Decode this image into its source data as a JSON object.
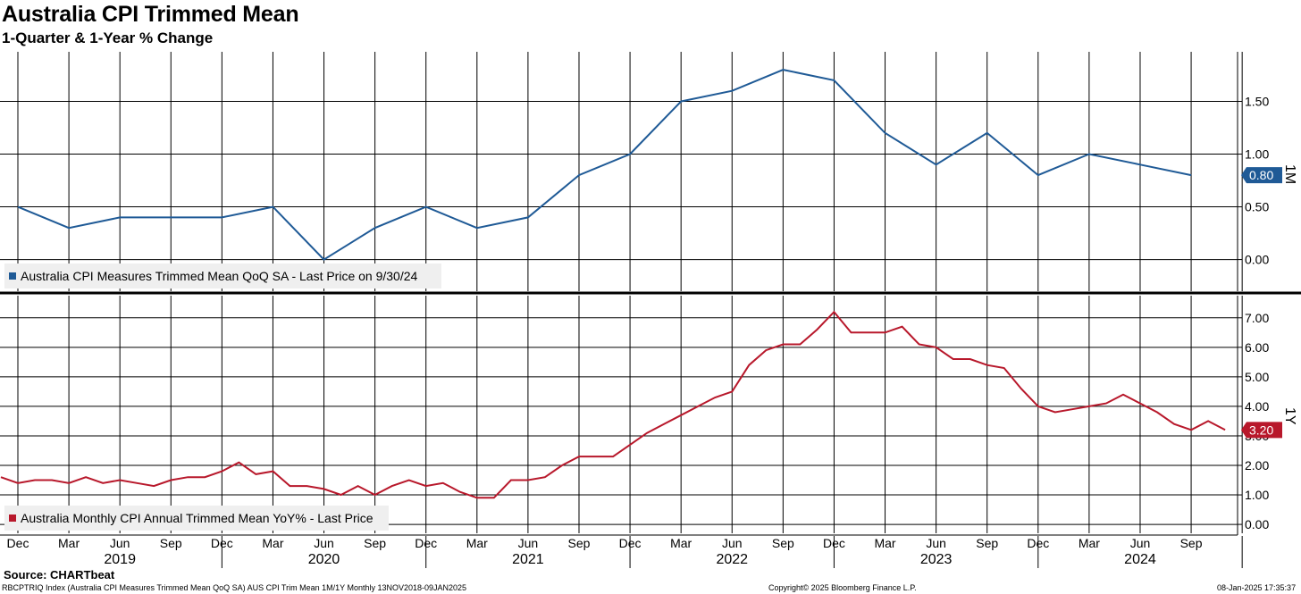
{
  "header": {
    "title": "Australia CPI Trimmed Mean",
    "subtitle": "1-Quarter & 1-Year % Change"
  },
  "colors": {
    "qoq": "#1f5a96",
    "yoy": "#b8182b"
  },
  "chart_data": [
    {
      "type": "line",
      "panel": "top",
      "title": "Australia CPI Measures Trimmed Mean QoQ SA",
      "legend": "Australia CPI Measures Trimmed Mean QoQ SA - Last Price on 9/30/24",
      "axis_tag": "1M",
      "last_value_label": "0.80",
      "ylim": [
        -0.3,
        1.97
      ],
      "yticks": [
        0.0,
        0.5,
        1.0,
        1.5
      ],
      "ytick_labels": [
        "0.00",
        "0.50",
        "1.00",
        "1.50"
      ],
      "x": [
        "2018-12",
        "2019-03",
        "2019-06",
        "2019-09",
        "2019-12",
        "2020-03",
        "2020-06",
        "2020-09",
        "2020-12",
        "2021-03",
        "2021-06",
        "2021-09",
        "2021-12",
        "2022-03",
        "2022-06",
        "2022-09",
        "2022-12",
        "2023-03",
        "2023-06",
        "2023-09",
        "2023-12",
        "2024-03",
        "2024-06",
        "2024-09"
      ],
      "values": [
        0.5,
        0.3,
        0.4,
        0.4,
        0.4,
        0.5,
        0.0,
        0.3,
        0.5,
        0.3,
        0.4,
        0.8,
        1.0,
        1.5,
        1.6,
        1.8,
        1.7,
        1.2,
        0.9,
        1.2,
        0.8,
        1.0,
        0.9,
        0.8
      ]
    },
    {
      "type": "line",
      "panel": "bottom",
      "title": "Australia Monthly CPI Annual Trimmed Mean YoY%",
      "legend": "Australia Monthly CPI Annual Trimmed Mean YoY% - Last Price",
      "axis_tag": "1Y",
      "last_value_label": "3.20",
      "ylim": [
        -0.3,
        7.75
      ],
      "yticks": [
        0,
        1,
        2,
        3,
        4,
        5,
        6,
        7
      ],
      "ytick_labels": [
        "0.00",
        "1.00",
        "2.00",
        "3.00",
        "4.00",
        "5.00",
        "6.00",
        "7.00"
      ],
      "x_start": "2018-11",
      "values": [
        1.6,
        1.4,
        1.5,
        1.5,
        1.4,
        1.6,
        1.4,
        1.5,
        1.4,
        1.3,
        1.5,
        1.6,
        1.6,
        1.8,
        2.1,
        1.7,
        1.8,
        1.3,
        1.3,
        1.2,
        1.0,
        1.3,
        1.0,
        1.3,
        1.5,
        1.3,
        1.4,
        1.1,
        0.9,
        0.9,
        1.5,
        1.5,
        1.6,
        2.0,
        2.3,
        2.3,
        2.3,
        2.7,
        3.1,
        3.4,
        3.7,
        4.0,
        4.3,
        4.5,
        5.4,
        5.9,
        6.1,
        6.1,
        6.6,
        7.2,
        6.5,
        6.5,
        6.5,
        6.7,
        6.1,
        6.0,
        5.6,
        5.6,
        5.4,
        5.3,
        4.6,
        4.0,
        3.8,
        3.9,
        4.0,
        4.1,
        4.4,
        4.1,
        3.8,
        3.4,
        3.2,
        3.5,
        3.2
      ]
    }
  ],
  "x_axis": {
    "month_ticks": [
      "Dec",
      "Mar",
      "Jun",
      "Sep",
      "Dec",
      "Mar",
      "Jun",
      "Sep",
      "Dec",
      "Mar",
      "Jun",
      "Sep",
      "Dec",
      "Mar",
      "Jun",
      "Sep",
      "Dec",
      "Mar",
      "Jun",
      "Sep",
      "Dec",
      "Mar",
      "Jun",
      "Sep"
    ],
    "years": [
      "2019",
      "2020",
      "2021",
      "2022",
      "2023",
      "2024"
    ]
  },
  "footer": {
    "source": "Source: CHARTbeat",
    "ticker": "RBCPTRIQ Index (Australia CPI Measures Trimmed Mean QoQ SA) AUS CPI Trim Mean 1M/1Y  Monthly 13NOV2018-09JAN2025",
    "copyright": "Copyright© 2025 Bloomberg Finance L.P.",
    "timestamp": "08-Jan-2025 17:35:37"
  }
}
